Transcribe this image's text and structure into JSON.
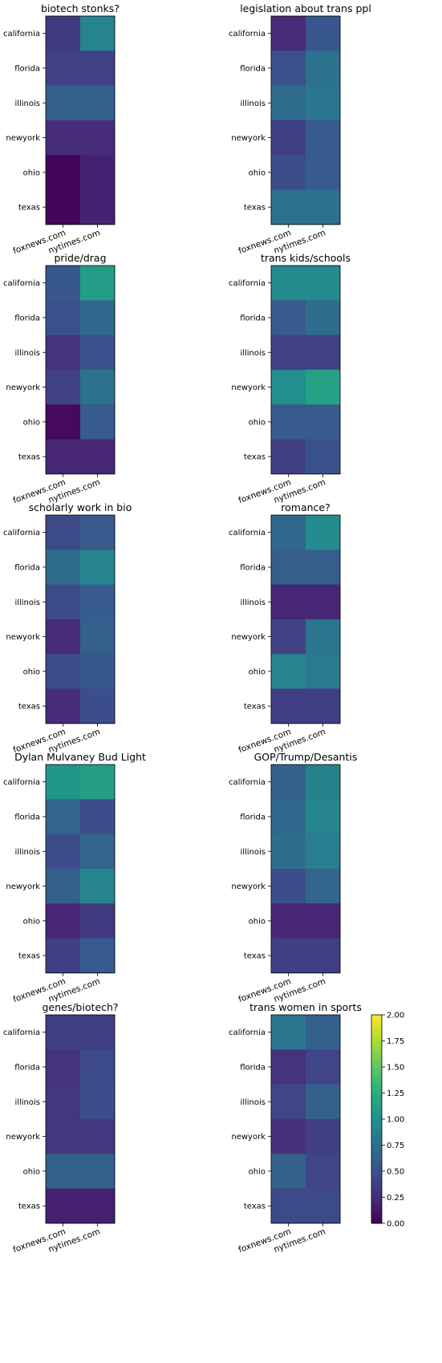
{
  "chart_data": [
    {
      "type": "heatmap",
      "title": "biotech stonks?",
      "x_categories": [
        "foxnews.com",
        "nytimes.com"
      ],
      "y_categories": [
        "california",
        "florida",
        "illinois",
        "newyork",
        "ohio",
        "texas"
      ],
      "values": [
        [
          0.35,
          0.9
        ],
        [
          0.4,
          0.4
        ],
        [
          0.63,
          0.63
        ],
        [
          0.25,
          0.25
        ],
        [
          0.03,
          0.2
        ],
        [
          0.03,
          0.2
        ]
      ]
    },
    {
      "type": "heatmap",
      "title": "legislation about trans ppl",
      "x_categories": [
        "foxnews.com",
        "nytimes.com"
      ],
      "y_categories": [
        "california",
        "florida",
        "illinois",
        "newyork",
        "ohio",
        "texas"
      ],
      "values": [
        [
          0.25,
          0.55
        ],
        [
          0.5,
          0.75
        ],
        [
          0.7,
          0.78
        ],
        [
          0.38,
          0.58
        ],
        [
          0.48,
          0.58
        ],
        [
          0.75,
          0.75
        ]
      ]
    },
    {
      "type": "heatmap",
      "title": "pride/drag",
      "x_categories": [
        "foxnews.com",
        "nytimes.com"
      ],
      "y_categories": [
        "california",
        "florida",
        "illinois",
        "newyork",
        "ohio",
        "texas"
      ],
      "values": [
        [
          0.55,
          1.1
        ],
        [
          0.5,
          0.68
        ],
        [
          0.3,
          0.5
        ],
        [
          0.4,
          0.75
        ],
        [
          0.05,
          0.58
        ],
        [
          0.22,
          0.22
        ]
      ]
    },
    {
      "type": "heatmap",
      "title": "trans kids/schools",
      "x_categories": [
        "foxnews.com",
        "nytimes.com"
      ],
      "y_categories": [
        "california",
        "florida",
        "illinois",
        "newyork",
        "ohio",
        "texas"
      ],
      "values": [
        [
          0.95,
          0.95
        ],
        [
          0.58,
          0.72
        ],
        [
          0.4,
          0.4
        ],
        [
          0.98,
          1.15
        ],
        [
          0.58,
          0.58
        ],
        [
          0.38,
          0.5
        ]
      ]
    },
    {
      "type": "heatmap",
      "title": "scholarly work in bio",
      "x_categories": [
        "foxnews.com",
        "nytimes.com"
      ],
      "y_categories": [
        "california",
        "florida",
        "illinois",
        "newyork",
        "ohio",
        "texas"
      ],
      "values": [
        [
          0.45,
          0.58
        ],
        [
          0.72,
          0.9
        ],
        [
          0.45,
          0.58
        ],
        [
          0.25,
          0.62
        ],
        [
          0.45,
          0.55
        ],
        [
          0.25,
          0.48
        ]
      ]
    },
    {
      "type": "heatmap",
      "title": "romance?",
      "x_categories": [
        "foxnews.com",
        "nytimes.com"
      ],
      "y_categories": [
        "california",
        "florida",
        "illinois",
        "newyork",
        "ohio",
        "texas"
      ],
      "values": [
        [
          0.68,
          0.95
        ],
        [
          0.6,
          0.6
        ],
        [
          0.22,
          0.22
        ],
        [
          0.4,
          0.78
        ],
        [
          0.9,
          0.82
        ],
        [
          0.38,
          0.38
        ]
      ]
    },
    {
      "type": "heatmap",
      "title": "Dylan Mulvaney Bud Light",
      "x_categories": [
        "foxnews.com",
        "nytimes.com"
      ],
      "y_categories": [
        "california",
        "florida",
        "illinois",
        "newyork",
        "ohio",
        "texas"
      ],
      "values": [
        [
          1.05,
          1.12
        ],
        [
          0.65,
          0.48
        ],
        [
          0.48,
          0.65
        ],
        [
          0.62,
          0.9
        ],
        [
          0.22,
          0.35
        ],
        [
          0.38,
          0.58
        ]
      ]
    },
    {
      "type": "heatmap",
      "title": "GOP/Trump/Desantis",
      "x_categories": [
        "foxnews.com",
        "nytimes.com"
      ],
      "y_categories": [
        "california",
        "florida",
        "illinois",
        "newyork",
        "ohio",
        "texas"
      ],
      "values": [
        [
          0.62,
          0.88
        ],
        [
          0.68,
          0.9
        ],
        [
          0.72,
          0.85
        ],
        [
          0.48,
          0.65
        ],
        [
          0.22,
          0.22
        ],
        [
          0.38,
          0.38
        ]
      ]
    },
    {
      "type": "heatmap",
      "title": "genes/biotech?",
      "x_categories": [
        "foxnews.com",
        "nytimes.com"
      ],
      "y_categories": [
        "california",
        "florida",
        "illinois",
        "newyork",
        "ohio",
        "texas"
      ],
      "values": [
        [
          0.38,
          0.38
        ],
        [
          0.3,
          0.45
        ],
        [
          0.32,
          0.48
        ],
        [
          0.32,
          0.32
        ],
        [
          0.62,
          0.62
        ],
        [
          0.18,
          0.18
        ]
      ]
    },
    {
      "type": "heatmap",
      "title": "trans women in sports",
      "x_categories": [
        "foxnews.com",
        "nytimes.com"
      ],
      "y_categories": [
        "california",
        "florida",
        "illinois",
        "newyork",
        "ohio",
        "texas"
      ],
      "values": [
        [
          0.8,
          0.62
        ],
        [
          0.3,
          0.42
        ],
        [
          0.42,
          0.62
        ],
        [
          0.28,
          0.38
        ],
        [
          0.62,
          0.42
        ],
        [
          0.45,
          0.45
        ]
      ],
      "colorbar": {
        "vmin": 0,
        "vmax": 2,
        "ticks": [
          "0.00",
          "0.25",
          "0.50",
          "0.75",
          "1.00",
          "1.25",
          "1.50",
          "1.75",
          "2.00"
        ],
        "colormap": "viridis"
      }
    }
  ]
}
